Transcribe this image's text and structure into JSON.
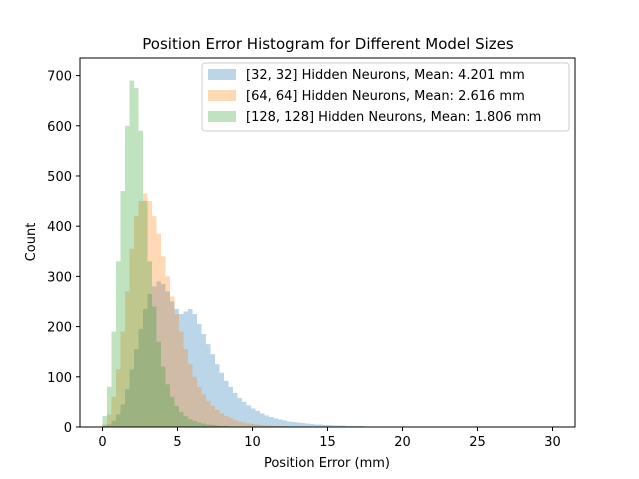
{
  "chart_data": {
    "type": "histogram",
    "title": "Position Error Histogram for Different Model Sizes",
    "xlabel": "Position Error (mm)",
    "ylabel": "Count",
    "xlim": [
      -1.5,
      31.5
    ],
    "ylim": [
      0,
      735
    ],
    "xticks": [
      0,
      5,
      10,
      15,
      20,
      25,
      30
    ],
    "yticks": [
      0,
      100,
      200,
      300,
      400,
      500,
      600,
      700
    ],
    "grid": false,
    "legend_position": "top-right",
    "bin_width": 0.3,
    "bin_start": 0,
    "series": [
      {
        "name": "[32, 32] Hidden Neurons, Mean: 4.201 mm",
        "color": "#1f77b4",
        "opacity": 0.3,
        "counts": [
          2,
          5,
          12,
          25,
          45,
          75,
          115,
          155,
          195,
          235,
          265,
          280,
          290,
          285,
          270,
          250,
          235,
          225,
          230,
          235,
          225,
          205,
          185,
          165,
          145,
          125,
          108,
          92,
          80,
          68,
          58,
          50,
          43,
          37,
          32,
          27,
          23,
          20,
          17,
          15,
          13,
          11,
          10,
          9,
          8,
          7,
          6,
          5,
          5,
          4,
          4,
          3,
          3,
          3,
          2,
          2,
          2,
          2,
          1,
          1,
          1,
          1,
          1,
          1,
          1,
          1,
          1,
          1,
          1,
          1,
          1,
          1,
          1,
          1,
          1,
          1,
          1,
          1,
          1,
          1,
          1,
          1,
          1,
          1,
          1,
          1,
          1,
          1,
          1,
          1,
          1,
          1,
          1,
          1,
          1,
          1,
          1,
          1,
          1,
          1
        ]
      },
      {
        "name": "[64, 64] Hidden Neurons, Mean: 2.616 mm",
        "color": "#ff7f0e",
        "opacity": 0.3,
        "counts": [
          5,
          25,
          60,
          115,
          190,
          270,
          355,
          420,
          450,
          465,
          450,
          420,
          385,
          340,
          300,
          260,
          225,
          190,
          155,
          125,
          100,
          80,
          65,
          52,
          42,
          34,
          27,
          22,
          18,
          14,
          11,
          9,
          7,
          6,
          5,
          4,
          3,
          3,
          2,
          2,
          2,
          1,
          1,
          1,
          1,
          1,
          1,
          1,
          1,
          1
        ]
      },
      {
        "name": "[128, 128] Hidden Neurons, Mean: 1.806 mm",
        "color": "#2ca02c",
        "opacity": 0.3,
        "counts": [
          22,
          80,
          190,
          330,
          470,
          600,
          690,
          675,
          590,
          450,
          330,
          240,
          170,
          120,
          85,
          60,
          42,
          30,
          22,
          16,
          12,
          9,
          7,
          5,
          4,
          3,
          2,
          2,
          1,
          1,
          1,
          1
        ]
      }
    ]
  }
}
